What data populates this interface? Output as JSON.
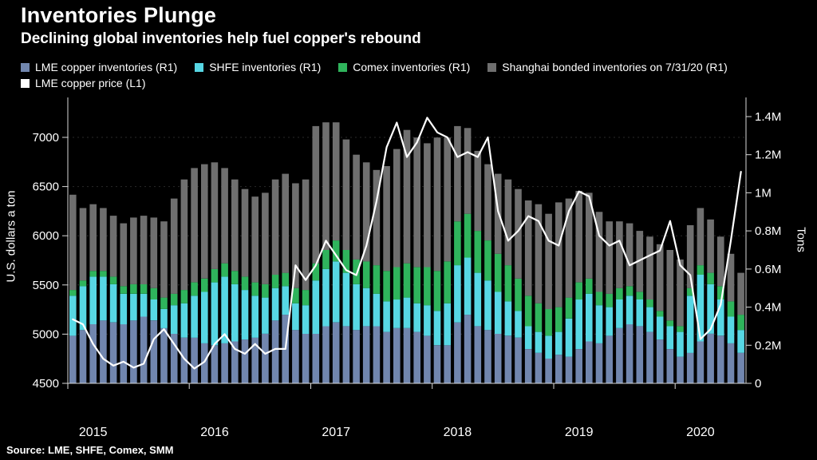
{
  "header": {
    "title": "Inventories Plunge",
    "subtitle": "Declining global inventories help fuel copper's rebound"
  },
  "legend": {
    "items": [
      {
        "label": "LME copper inventories (R1)",
        "color": "#7186ae"
      },
      {
        "label": "SHFE inventories (R1)",
        "color": "#57d7e4"
      },
      {
        "label": "Comex inventories (R1)",
        "color": "#2fb45c"
      },
      {
        "label": "Shanghai bonded inventories on 7/31/20 (R1)",
        "color": "#6f6f6f"
      },
      {
        "label": "LME copper price (L1)",
        "color": "#ffffff"
      }
    ]
  },
  "axes": {
    "left": {
      "title": "U.S. dollars a ton"
    },
    "right": {
      "title": "Tons"
    }
  },
  "source": "Source: LME, SHFE, Comex, SMM",
  "chart_data": {
    "type": "bar+line",
    "subtype": "stacked monthly bars (right axis, tons) with price line (left axis, USD/ton)",
    "x_range": "2015-01 to 2020-07, monthly",
    "left_axis": {
      "label": "U.S. dollars a ton",
      "ticks": [
        4500,
        5000,
        5500,
        6000,
        6500,
        7000
      ],
      "range": [
        4500,
        7400
      ]
    },
    "right_axis": {
      "label": "Tons",
      "ticks": [
        {
          "label": "0",
          "value": 0
        },
        {
          "label": "0.2M",
          "value": 0.2
        },
        {
          "label": "0.4M",
          "value": 0.4
        },
        {
          "label": "0.6M",
          "value": 0.6
        },
        {
          "label": "0.8M",
          "value": 0.8
        },
        {
          "label": "1M",
          "value": 1.0
        },
        {
          "label": "1.2M",
          "value": 1.2
        },
        {
          "label": "1.4M",
          "value": 1.4
        }
      ],
      "range": [
        0,
        1.5
      ]
    },
    "years": [
      {
        "label": "2015",
        "index": 0
      },
      {
        "label": "2016",
        "index": 12
      },
      {
        "label": "2017",
        "index": 24
      },
      {
        "label": "2018",
        "index": 36
      },
      {
        "label": "2019",
        "index": 48
      },
      {
        "label": "2020",
        "index": 60
      }
    ],
    "series": [
      {
        "name": "LME copper inventories (R1)",
        "type": "bar",
        "color": "#7186ae",
        "unit": "million tons",
        "values": [
          0.25,
          0.28,
          0.31,
          0.33,
          0.32,
          0.31,
          0.33,
          0.35,
          0.33,
          0.29,
          0.26,
          0.24,
          0.24,
          0.21,
          0.2,
          0.21,
          0.22,
          0.23,
          0.24,
          0.26,
          0.33,
          0.36,
          0.28,
          0.26,
          0.26,
          0.3,
          0.32,
          0.3,
          0.28,
          0.3,
          0.3,
          0.27,
          0.29,
          0.29,
          0.27,
          0.25,
          0.2,
          0.2,
          0.32,
          0.36,
          0.3,
          0.28,
          0.26,
          0.25,
          0.24,
          0.18,
          0.16,
          0.13,
          0.15,
          0.14,
          0.18,
          0.22,
          0.21,
          0.25,
          0.29,
          0.31,
          0.3,
          0.27,
          0.23,
          0.18,
          0.14,
          0.16,
          0.22,
          0.26,
          0.25,
          0.21,
          0.16
        ]
      },
      {
        "name": "SHFE inventories (R1)",
        "type": "bar",
        "color": "#57d7e4",
        "unit": "million tons",
        "values": [
          0.21,
          0.23,
          0.25,
          0.23,
          0.2,
          0.16,
          0.14,
          0.12,
          0.11,
          0.1,
          0.15,
          0.18,
          0.22,
          0.27,
          0.33,
          0.35,
          0.3,
          0.26,
          0.22,
          0.19,
          0.17,
          0.15,
          0.14,
          0.15,
          0.28,
          0.3,
          0.32,
          0.28,
          0.24,
          0.2,
          0.17,
          0.16,
          0.15,
          0.16,
          0.15,
          0.16,
          0.18,
          0.22,
          0.3,
          0.3,
          0.28,
          0.26,
          0.22,
          0.18,
          0.14,
          0.12,
          0.11,
          0.12,
          0.12,
          0.2,
          0.26,
          0.25,
          0.2,
          0.15,
          0.15,
          0.15,
          0.14,
          0.13,
          0.12,
          0.12,
          0.13,
          0.3,
          0.35,
          0.26,
          0.19,
          0.14,
          0.12
        ]
      },
      {
        "name": "Comex inventories (R1)",
        "type": "bar",
        "color": "#2fb45c",
        "unit": "million tons",
        "values": [
          0.03,
          0.03,
          0.03,
          0.03,
          0.04,
          0.04,
          0.05,
          0.05,
          0.06,
          0.06,
          0.06,
          0.07,
          0.07,
          0.07,
          0.07,
          0.07,
          0.07,
          0.07,
          0.07,
          0.07,
          0.07,
          0.07,
          0.08,
          0.08,
          0.09,
          0.1,
          0.11,
          0.12,
          0.13,
          0.14,
          0.15,
          0.16,
          0.17,
          0.18,
          0.19,
          0.2,
          0.21,
          0.22,
          0.23,
          0.23,
          0.22,
          0.21,
          0.2,
          0.19,
          0.17,
          0.16,
          0.15,
          0.14,
          0.13,
          0.11,
          0.09,
          0.08,
          0.07,
          0.07,
          0.06,
          0.05,
          0.04,
          0.04,
          0.03,
          0.03,
          0.03,
          0.04,
          0.05,
          0.06,
          0.07,
          0.08,
          0.08
        ]
      },
      {
        "name": "Shanghai bonded inventories on 7/31/20 (R1)",
        "type": "bar",
        "color": "#6f6f6f",
        "unit": "million tons",
        "values": [
          0.5,
          0.38,
          0.35,
          0.33,
          0.32,
          0.33,
          0.35,
          0.36,
          0.37,
          0.4,
          0.5,
          0.58,
          0.6,
          0.6,
          0.56,
          0.5,
          0.48,
          0.46,
          0.45,
          0.48,
          0.5,
          0.52,
          0.55,
          0.58,
          0.72,
          0.67,
          0.62,
          0.58,
          0.55,
          0.52,
          0.5,
          0.55,
          0.62,
          0.7,
          0.68,
          0.65,
          0.7,
          0.65,
          0.5,
          0.45,
          0.42,
          0.4,
          0.42,
          0.45,
          0.47,
          0.5,
          0.52,
          0.5,
          0.55,
          0.52,
          0.48,
          0.45,
          0.42,
          0.38,
          0.35,
          0.33,
          0.32,
          0.33,
          0.35,
          0.37,
          0.35,
          0.33,
          0.3,
          0.28,
          0.26,
          0.25,
          0.22
        ]
      },
      {
        "name": "LME copper price (L1)",
        "type": "line",
        "color": "#ffffff",
        "unit": "USD/ton",
        "axis": "left",
        "values": [
          5150,
          5100,
          4900,
          4750,
          4680,
          4720,
          4660,
          4700,
          4950,
          5050,
          4900,
          4750,
          4650,
          4720,
          4900,
          5000,
          4850,
          4800,
          4900,
          4800,
          4850,
          4850,
          5700,
          5550,
          5700,
          5950,
          5800,
          5650,
          5600,
          5900,
          6350,
          6900,
          7150,
          6800,
          6950,
          7200,
          7050,
          7000,
          6800,
          6850,
          6800,
          7000,
          6250,
          5950,
          6050,
          6200,
          6150,
          5950,
          5900,
          6250,
          6450,
          6400,
          6000,
          5900,
          5950,
          5700,
          5750,
          5800,
          5850,
          6150,
          5700,
          5600,
          4950,
          5050,
          5300,
          5950,
          6650
        ]
      }
    ]
  }
}
